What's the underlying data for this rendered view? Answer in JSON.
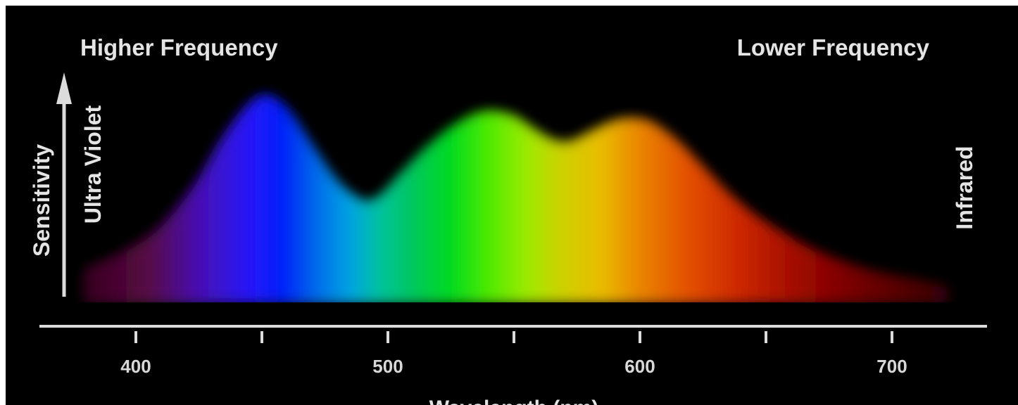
{
  "chart_data": {
    "type": "area",
    "x_unit": "nm",
    "xlim": [
      362,
      742
    ],
    "xlabel": "Wavelength (nm)",
    "ylabel": "Sensitivity",
    "grid": false,
    "annotations": {
      "top_left": "Higher Frequency",
      "top_right": "Lower Frequency",
      "left_side": "Ultra Violet",
      "right_side": "Infrared"
    },
    "x_ticks": [
      {
        "value": 400,
        "label": "400"
      },
      {
        "value": 450,
        "label": ""
      },
      {
        "value": 500,
        "label": "500"
      },
      {
        "value": 550,
        "label": ""
      },
      {
        "value": 600,
        "label": "600"
      },
      {
        "value": 650,
        "label": ""
      },
      {
        "value": 700,
        "label": "700"
      }
    ],
    "spectrum_curve": {
      "x": [
        380,
        395,
        410,
        425,
        435,
        445,
        452,
        460,
        470,
        480,
        490,
        497,
        505,
        515,
        525,
        535,
        542,
        550,
        557,
        565,
        572,
        580,
        590,
        598,
        605,
        615,
        625,
        635,
        645,
        655,
        665,
        675,
        685,
        695,
        705,
        715,
        722
      ],
      "y": [
        0.14,
        0.21,
        0.32,
        0.52,
        0.7,
        0.84,
        0.88,
        0.82,
        0.66,
        0.51,
        0.43,
        0.45,
        0.54,
        0.65,
        0.74,
        0.8,
        0.81,
        0.79,
        0.74,
        0.69,
        0.68,
        0.72,
        0.77,
        0.78,
        0.76,
        0.68,
        0.57,
        0.46,
        0.37,
        0.3,
        0.24,
        0.19,
        0.15,
        0.12,
        0.1,
        0.08,
        0.06
      ]
    },
    "colors": {
      "background": "#000000",
      "axis": "#dcdcdc",
      "text": "#e4e4e4",
      "spectrum": [
        {
          "nm": 380,
          "color": "#3a0020"
        },
        {
          "nm": 405,
          "color": "#5a0a46"
        },
        {
          "nm": 425,
          "color": "#4a10b8"
        },
        {
          "nm": 445,
          "color": "#2818ff"
        },
        {
          "nm": 458,
          "color": "#0020ff"
        },
        {
          "nm": 472,
          "color": "#0070f0"
        },
        {
          "nm": 485,
          "color": "#00a8e8"
        },
        {
          "nm": 497,
          "color": "#00c8a0"
        },
        {
          "nm": 510,
          "color": "#00cc60"
        },
        {
          "nm": 525,
          "color": "#00e020"
        },
        {
          "nm": 540,
          "color": "#50f000"
        },
        {
          "nm": 555,
          "color": "#a0f000"
        },
        {
          "nm": 568,
          "color": "#d0d800"
        },
        {
          "nm": 585,
          "color": "#f0c000"
        },
        {
          "nm": 600,
          "color": "#f08800"
        },
        {
          "nm": 620,
          "color": "#e85000"
        },
        {
          "nm": 640,
          "color": "#d02800"
        },
        {
          "nm": 665,
          "color": "#a00800"
        },
        {
          "nm": 690,
          "color": "#700000"
        },
        {
          "nm": 722,
          "color": "#3a0008"
        }
      ]
    }
  }
}
